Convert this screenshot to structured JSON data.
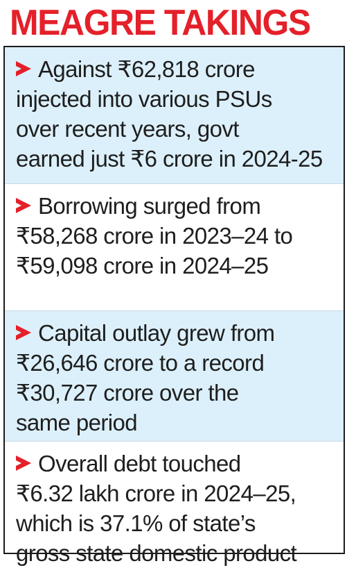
{
  "title": "MEAGRE TAKINGS",
  "colors": {
    "accent": "#e4202a",
    "shade": "#dcf0fb",
    "text": "#1e1e1e",
    "border": "#1a1a1a"
  },
  "items": [
    {
      "icon": "red-arrow-bullet-icon",
      "lines": [
        "Against ₹62,818 crore",
        "injected into various PSUs",
        "over recent years, govt",
        "earned just ₹6 crore in 2024-25"
      ]
    },
    {
      "icon": "red-arrow-bullet-icon",
      "lines": [
        "Borrowing surged from",
        "₹58,268 crore in 2023–24 to",
        "₹59,098 crore in 2024–25"
      ]
    },
    {
      "icon": "red-arrow-bullet-icon",
      "lines": [
        "Capital outlay grew from",
        "₹26,646 crore to a record",
        "₹30,727 crore over the",
        "same period"
      ]
    },
    {
      "icon": "red-arrow-bullet-icon",
      "lines": [
        "Overall debt touched",
        "₹6.32 lakh crore in 2024–25,",
        "which is 37.1% of state’s",
        "gross state domestic product"
      ]
    }
  ]
}
